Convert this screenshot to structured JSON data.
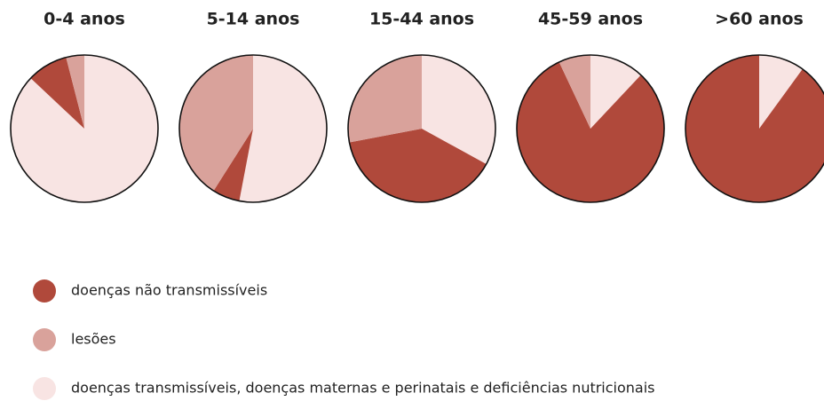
{
  "chart_data": [
    {
      "type": "pie",
      "title": "0-4 anos",
      "categories": [
        "doenças transmissíveis, doenças maternas e perinatais e deficiências nutricionais",
        "doenças não transmissíveis",
        "lesões"
      ],
      "values": [
        87,
        9,
        4
      ],
      "colors": [
        "#f8e4e3",
        "#b0493b",
        "#d9a29b"
      ]
    },
    {
      "type": "pie",
      "title": "5-14 anos",
      "categories": [
        "doenças transmissíveis, doenças maternas e perinatais e deficiências nutricionais",
        "doenças não transmissíveis",
        "lesões"
      ],
      "values": [
        53,
        6,
        41
      ],
      "colors": [
        "#f8e4e3",
        "#b0493b",
        "#d9a29b"
      ]
    },
    {
      "type": "pie",
      "title": "15-44 anos",
      "categories": [
        "doenças transmissíveis, doenças maternas e perinatais e deficiências nutricionais",
        "doenças não transmissíveis",
        "lesões"
      ],
      "values": [
        33,
        39,
        28
      ],
      "colors": [
        "#f8e4e3",
        "#b0493b",
        "#d9a29b"
      ]
    },
    {
      "type": "pie",
      "title": "45-59 anos",
      "categories": [
        "doenças transmissíveis, doenças maternas e perinatais e deficiências nutricionais",
        "doenças não transmissíveis",
        "lesões"
      ],
      "values": [
        12,
        81,
        7
      ],
      "colors": [
        "#f8e4e3",
        "#b0493b",
        "#d9a29b"
      ]
    },
    {
      "type": "pie",
      "title": ">60 anos",
      "categories": [
        "doenças transmissíveis, doenças maternas e perinatais e deficiências nutricionais",
        "doenças não transmissíveis",
        "lesões"
      ],
      "values": [
        10,
        90,
        0
      ],
      "colors": [
        "#f8e4e3",
        "#b0493b",
        "#d9a29b"
      ]
    }
  ]
}
